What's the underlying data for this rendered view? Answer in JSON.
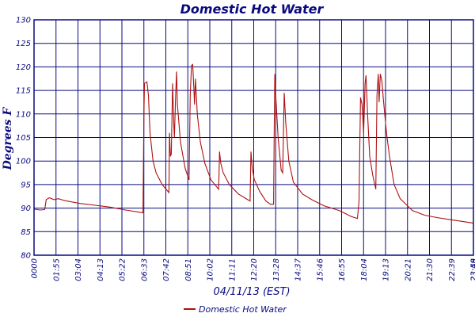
{
  "chart_data": {
    "type": "line",
    "title": "Domestic Hot Water",
    "xlabel": "04/11/13 (EST)",
    "ylabel": "Degrees F",
    "ylim": [
      80,
      130
    ],
    "xlim": [
      0,
      1440
    ],
    "y_ticks": [
      80,
      85,
      90,
      95,
      100,
      105,
      110,
      115,
      120,
      125,
      130
    ],
    "x_tick_labels": [
      "0000",
      "01:55",
      "03:04",
      "04:13",
      "05:22",
      "06:33",
      "07:42",
      "08:51",
      "10:02",
      "11:11",
      "12:20",
      "13:28",
      "14:37",
      "15:46",
      "16:55",
      "18:04",
      "19:13",
      "20:21",
      "21:30",
      "22:39",
      "23:48",
      "23:59"
    ],
    "grid": true,
    "legend_position": "bottom",
    "series": [
      {
        "name": "Domestic Hot Water",
        "color": "#b01010",
        "x_unit": "minutes since 00:00",
        "points": [
          [
            0,
            89.8
          ],
          [
            20,
            89.6
          ],
          [
            35,
            89.7
          ],
          [
            40,
            91.8
          ],
          [
            50,
            92.2
          ],
          [
            65,
            91.8
          ],
          [
            80,
            92.0
          ],
          [
            100,
            91.6
          ],
          [
            150,
            91.0
          ],
          [
            200,
            90.6
          ],
          [
            250,
            90.2
          ],
          [
            300,
            89.6
          ],
          [
            340,
            89.2
          ],
          [
            357,
            89.0
          ],
          [
            360,
            110.0
          ],
          [
            362,
            116.5
          ],
          [
            370,
            116.8
          ],
          [
            375,
            114.0
          ],
          [
            380,
            106.0
          ],
          [
            390,
            100.0
          ],
          [
            400,
            97.5
          ],
          [
            420,
            95.0
          ],
          [
            442,
            93.3
          ],
          [
            444,
            106.0
          ],
          [
            447,
            101.0
          ],
          [
            450,
            101.5
          ],
          [
            454,
            116.5
          ],
          [
            458,
            108.0
          ],
          [
            460,
            105.0
          ],
          [
            464,
            113.5
          ],
          [
            467,
            119.0
          ],
          [
            470,
            112.0
          ],
          [
            480,
            104.0
          ],
          [
            495,
            98.5
          ],
          [
            508,
            96.0
          ],
          [
            512,
            114.0
          ],
          [
            516,
            120.3
          ],
          [
            520,
            120.5
          ],
          [
            524,
            115.0
          ],
          [
            526,
            112.0
          ],
          [
            529,
            117.5
          ],
          [
            535,
            110.0
          ],
          [
            545,
            104.0
          ],
          [
            560,
            99.5
          ],
          [
            580,
            96.0
          ],
          [
            605,
            94.0
          ],
          [
            608,
            102.0
          ],
          [
            612,
            99.5
          ],
          [
            620,
            97.5
          ],
          [
            640,
            95.0
          ],
          [
            670,
            93.0
          ],
          [
            700,
            91.8
          ],
          [
            708,
            91.5
          ],
          [
            711,
            102.0
          ],
          [
            715,
            98.5
          ],
          [
            722,
            96.0
          ],
          [
            740,
            93.5
          ],
          [
            760,
            91.5
          ],
          [
            775,
            90.8
          ],
          [
            785,
            90.8
          ],
          [
            787,
            105.0
          ],
          [
            789,
            118.5
          ],
          [
            793,
            113.0
          ],
          [
            800,
            105.0
          ],
          [
            810,
            98.0
          ],
          [
            815,
            97.5
          ],
          [
            820,
            114.5
          ],
          [
            825,
            108.0
          ],
          [
            835,
            100.0
          ],
          [
            850,
            95.5
          ],
          [
            880,
            93.0
          ],
          [
            910,
            91.8
          ],
          [
            950,
            90.5
          ],
          [
            1000,
            89.5
          ],
          [
            1040,
            88.2
          ],
          [
            1060,
            87.8
          ],
          [
            1065,
            91.5
          ],
          [
            1070,
            113.5
          ],
          [
            1075,
            112.0
          ],
          [
            1080,
            106.0
          ],
          [
            1085,
            116.5
          ],
          [
            1088,
            118.2
          ],
          [
            1093,
            110.0
          ],
          [
            1100,
            101.0
          ],
          [
            1110,
            97.0
          ],
          [
            1120,
            94.0
          ],
          [
            1124,
            114.0
          ],
          [
            1128,
            118.5
          ],
          [
            1131,
            112.5
          ],
          [
            1135,
            118.5
          ],
          [
            1140,
            117.0
          ],
          [
            1145,
            113.0
          ],
          [
            1155,
            106.0
          ],
          [
            1165,
            101.0
          ],
          [
            1180,
            95.0
          ],
          [
            1200,
            92.0
          ],
          [
            1240,
            89.5
          ],
          [
            1280,
            88.5
          ],
          [
            1320,
            88.0
          ],
          [
            1360,
            87.6
          ],
          [
            1400,
            87.2
          ],
          [
            1440,
            86.8
          ]
        ]
      }
    ]
  }
}
